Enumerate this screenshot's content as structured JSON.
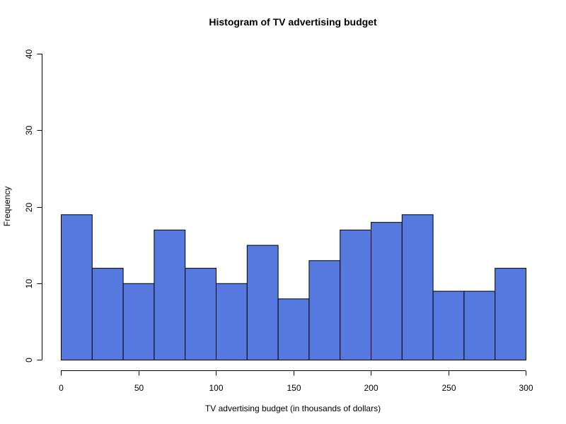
{
  "chart_data": {
    "type": "bar",
    "title": "Histogram of TV advertising budget",
    "xlabel": "TV advertising budget (in thousands of dollars)",
    "ylabel": "Frequency",
    "bin_edges": [
      0,
      20,
      40,
      60,
      80,
      100,
      120,
      140,
      160,
      180,
      200,
      220,
      240,
      260,
      280,
      300
    ],
    "values": [
      19,
      12,
      10,
      17,
      12,
      10,
      15,
      8,
      13,
      17,
      18,
      19,
      9,
      9,
      12
    ],
    "xlim": [
      0,
      300
    ],
    "ylim": [
      0,
      40
    ],
    "x_ticks": [
      "0",
      "50",
      "100",
      "150",
      "200",
      "250",
      "300"
    ],
    "y_ticks": [
      "0",
      "10",
      "20",
      "30",
      "40"
    ],
    "bar_color": "#5579DF",
    "grid": false
  }
}
